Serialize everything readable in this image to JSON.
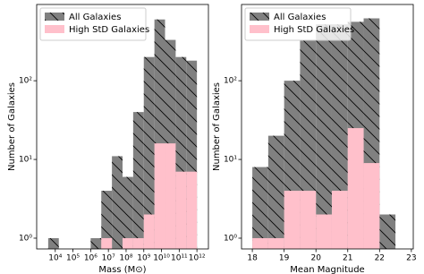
{
  "chart_data": [
    {
      "type": "histogram",
      "xlabel": "Mass (M⊙)",
      "ylabel": "Number of Galaxies",
      "xscale": "log",
      "yscale": "log",
      "legend": "upper left",
      "xlim": [
        891,
        4466835921509
      ],
      "ylim": [
        0.73,
        930
      ],
      "xticks": [
        {
          "value": 10000,
          "label": "10⁴"
        },
        {
          "value": 100000,
          "label": "10⁵"
        },
        {
          "value": 1000000,
          "label": "10⁶"
        },
        {
          "value": 10000000,
          "label": "10⁷"
        },
        {
          "value": 100000000,
          "label": "10⁸"
        },
        {
          "value": 1000000000,
          "label": "10⁹"
        },
        {
          "value": 10000000000,
          "label": "10¹⁰"
        },
        {
          "value": 100000000000,
          "label": "10¹¹"
        },
        {
          "value": 1000000000000,
          "label": "10¹²"
        }
      ],
      "yticks": [
        {
          "value": 1,
          "label": "10⁰"
        },
        {
          "value": 10,
          "label": "10¹"
        },
        {
          "value": 100,
          "label": "10²"
        }
      ],
      "bins": [
        3981,
        15849,
        63096,
        251189,
        1000000,
        3981072,
        15848932,
        63095734,
        251188643,
        1000000000,
        3981071706,
        15848931925,
        63095734448,
        251188643151,
        1000000000000
      ],
      "series": [
        {
          "name": "All Galaxies",
          "color": "#808080",
          "hatch": "\\",
          "values": [
            1,
            0,
            0,
            0,
            1,
            4,
            11,
            6,
            40,
            200,
            600,
            330,
            200,
            180
          ]
        },
        {
          "name": "High StD Galaxies",
          "color": "#ffc0cb",
          "values": [
            0,
            0,
            0,
            0,
            0,
            1,
            0,
            1,
            1,
            2,
            16,
            16,
            7,
            7
          ]
        }
      ]
    },
    {
      "type": "histogram",
      "xlabel": "Mean Magnitude",
      "ylabel": "Number of Galaxies",
      "yscale": "log",
      "legend": "upper left",
      "xlim": [
        17.66,
        23.06
      ],
      "ylim": [
        0.73,
        930
      ],
      "xticks": [
        18,
        19,
        20,
        21,
        22,
        23
      ],
      "yticks": [
        {
          "value": 1,
          "label": "10⁰"
        },
        {
          "value": 10,
          "label": "10¹"
        },
        {
          "value": 100,
          "label": "10²"
        }
      ],
      "bins": [
        18,
        18.5,
        19,
        19.5,
        20,
        20.5,
        21,
        21.5,
        22,
        22.5
      ],
      "series": [
        {
          "name": "All Galaxies",
          "color": "#808080",
          "hatch": "\\",
          "values": [
            8,
            20,
            100,
            330,
            520,
            520,
            560,
            620,
            2
          ]
        },
        {
          "name": "High StD Galaxies",
          "color": "#ffc0cb",
          "values": [
            1,
            1,
            4,
            4,
            2,
            4,
            25,
            9,
            0
          ]
        }
      ]
    }
  ]
}
